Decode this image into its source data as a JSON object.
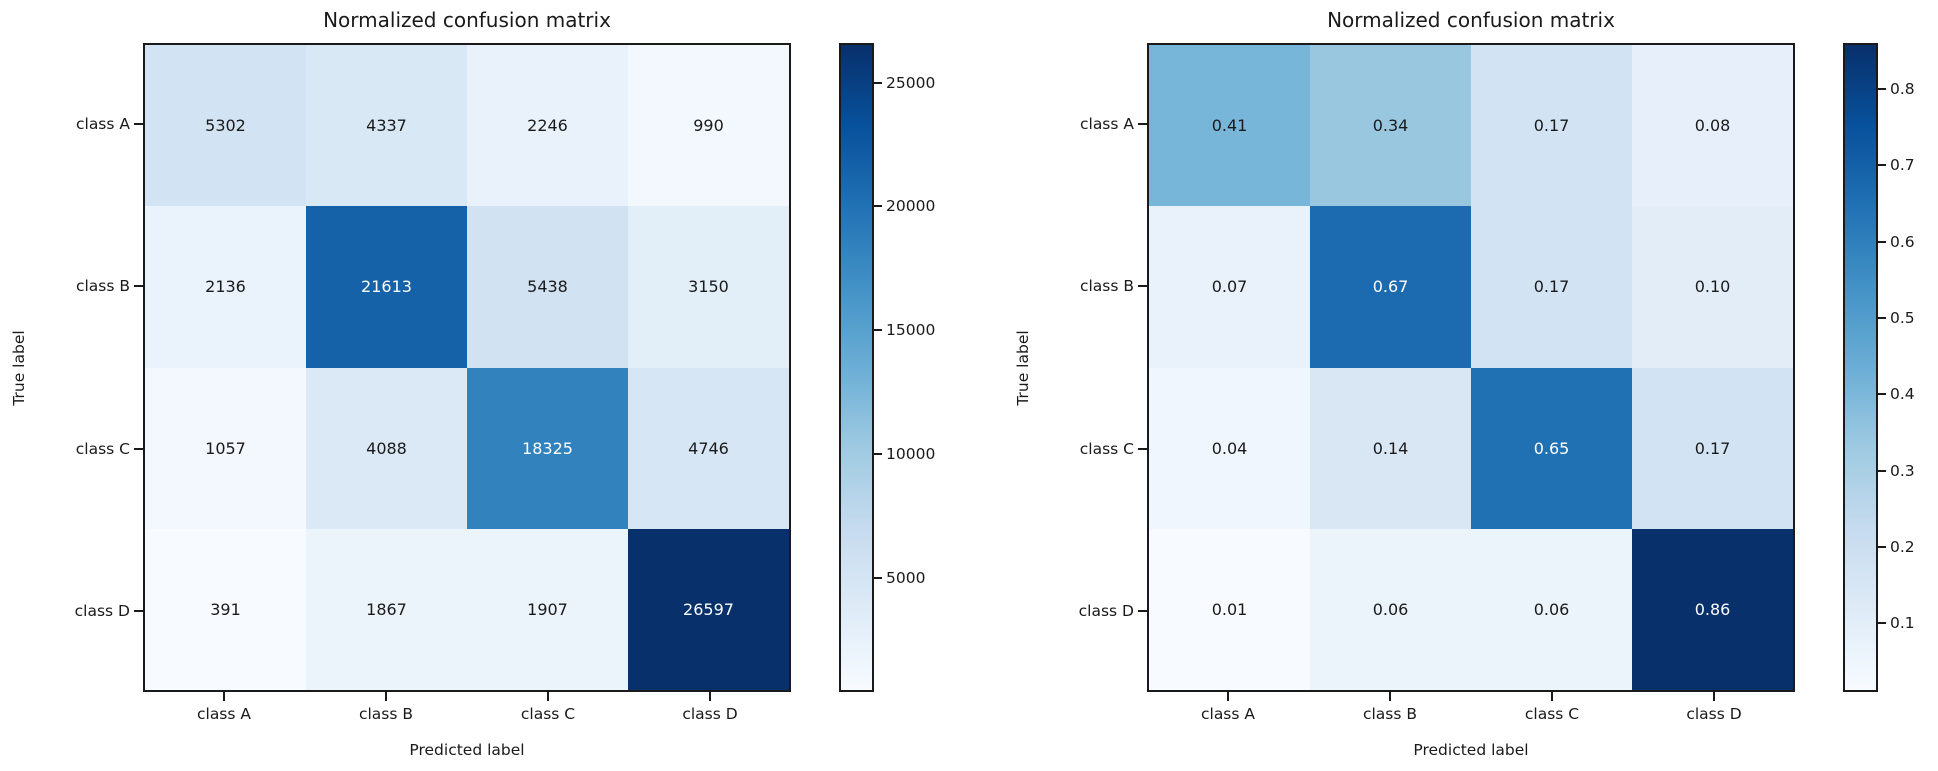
{
  "page": {
    "background": "#ffffff"
  },
  "appearance": {
    "text_color": "#1a1a1a",
    "cell_text_dark": "#1a1a1a",
    "cell_text_light": "#ffffff",
    "axes_border_color": "#1a1a1a",
    "colormap_name": "Blues",
    "colormap_anchors": [
      "#f7fbff",
      "#deebf7",
      "#c6dbef",
      "#9ecae1",
      "#6baed6",
      "#4292c6",
      "#2171b5",
      "#08519c",
      "#08306b"
    ]
  },
  "chart_data": [
    {
      "type": "heatmap",
      "title": "Normalized confusion matrix",
      "xlabel": "Predicted label",
      "ylabel": "True label",
      "x_categories": [
        "class A",
        "class B",
        "class C",
        "class D"
      ],
      "y_categories": [
        "class A",
        "class B",
        "class C",
        "class D"
      ],
      "values": [
        [
          5302,
          4337,
          2246,
          990
        ],
        [
          2136,
          21613,
          5438,
          3150
        ],
        [
          1057,
          4088,
          18325,
          4746
        ],
        [
          391,
          1867,
          1907,
          26597
        ]
      ],
      "cell_labels": [
        [
          "5302",
          "4337",
          "2246",
          "990"
        ],
        [
          "2136",
          "21613",
          "5438",
          "3150"
        ],
        [
          "1057",
          "4088",
          "18325",
          "4746"
        ],
        [
          "391",
          "1867",
          "1907",
          "26597"
        ]
      ],
      "vmin": 391,
      "vmax": 26597,
      "grid": false,
      "colorbar": {
        "position": "right",
        "ticks": [
          5000,
          10000,
          15000,
          20000,
          25000
        ],
        "tick_labels": [
          "5000",
          "10000",
          "15000",
          "20000",
          "25000"
        ]
      }
    },
    {
      "type": "heatmap",
      "title": "Normalized confusion matrix",
      "xlabel": "Predicted label",
      "ylabel": "True label",
      "x_categories": [
        "class A",
        "class B",
        "class C",
        "class D"
      ],
      "y_categories": [
        "class A",
        "class B",
        "class C",
        "class D"
      ],
      "values": [
        [
          0.41,
          0.34,
          0.17,
          0.08
        ],
        [
          0.07,
          0.67,
          0.17,
          0.1
        ],
        [
          0.04,
          0.14,
          0.65,
          0.17
        ],
        [
          0.01,
          0.06,
          0.06,
          0.86
        ]
      ],
      "cell_labels": [
        [
          "0.41",
          "0.34",
          "0.17",
          "0.08"
        ],
        [
          "0.07",
          "0.67",
          "0.17",
          "0.10"
        ],
        [
          "0.04",
          "0.14",
          "0.65",
          "0.17"
        ],
        [
          "0.01",
          "0.06",
          "0.06",
          "0.86"
        ]
      ],
      "vmin": 0.01,
      "vmax": 0.86,
      "grid": false,
      "colorbar": {
        "position": "right",
        "ticks": [
          0.1,
          0.2,
          0.3,
          0.4,
          0.5,
          0.6,
          0.7,
          0.8
        ],
        "tick_labels": [
          "0.1",
          "0.2",
          "0.3",
          "0.4",
          "0.5",
          "0.6",
          "0.7",
          "0.8"
        ]
      }
    }
  ]
}
